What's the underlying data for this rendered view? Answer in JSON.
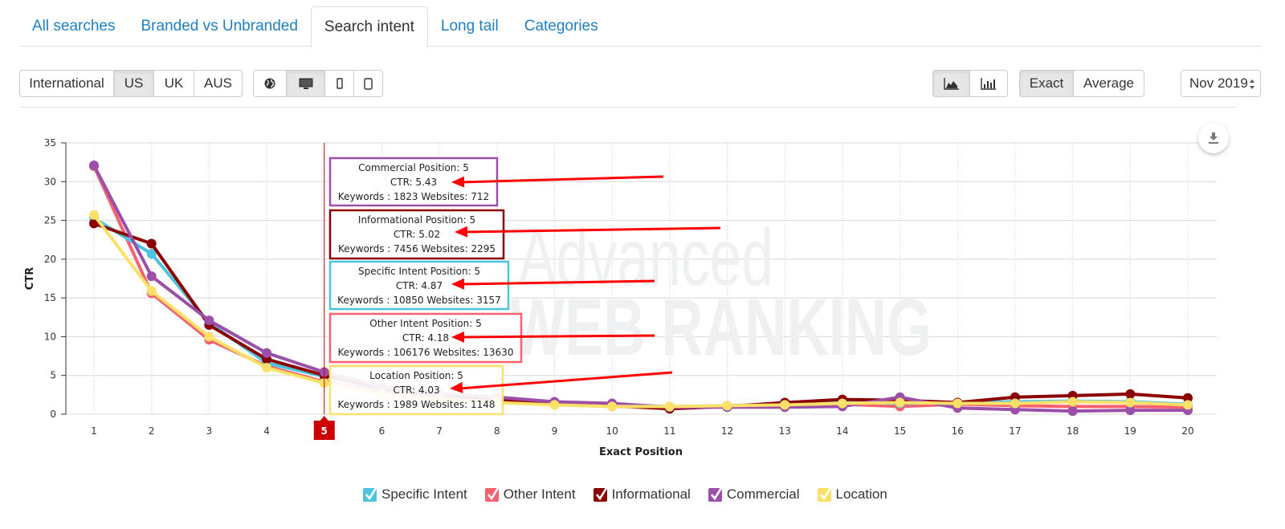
{
  "tabs": [
    {
      "label": "All searches",
      "active": false
    },
    {
      "label": "Branded vs Unbranded",
      "active": false
    },
    {
      "label": "Search intent",
      "active": true
    },
    {
      "label": "Long tail",
      "active": false
    },
    {
      "label": "Categories",
      "active": false
    }
  ],
  "toolbar": {
    "regions": [
      {
        "label": "International",
        "active": false
      },
      {
        "label": "US",
        "active": true
      },
      {
        "label": "UK",
        "active": false
      },
      {
        "label": "AUS",
        "active": false
      }
    ],
    "devices": [
      {
        "icon": "globe-icon",
        "active": false
      },
      {
        "icon": "desktop-icon",
        "active": true
      },
      {
        "icon": "mobile-icon",
        "active": false
      },
      {
        "icon": "tablet-icon",
        "active": false
      }
    ],
    "chart_types": [
      {
        "icon": "area-chart-icon",
        "active": true
      },
      {
        "icon": "bar-chart-icon",
        "active": false
      }
    ],
    "modes": [
      {
        "label": "Exact",
        "active": true
      },
      {
        "label": "Average",
        "active": false
      }
    ],
    "date_select": "Nov 2019"
  },
  "watermark": {
    "line1": "Advanced",
    "line2": "WEB RANKING"
  },
  "chart_data": {
    "type": "line",
    "title": "",
    "xlabel": "Exact Position",
    "ylabel": "CTR",
    "ylim": [
      0,
      35
    ],
    "yticks": [
      0,
      5,
      10,
      15,
      20,
      25,
      30,
      35
    ],
    "x": [
      1,
      2,
      3,
      4,
      5,
      6,
      7,
      8,
      9,
      10,
      11,
      12,
      13,
      14,
      15,
      16,
      17,
      18,
      19,
      20
    ],
    "grid": true,
    "legend_position": "bottom",
    "highlighted_x": 5,
    "series": [
      {
        "name": "Specific Intent",
        "color": "#4ec3e0",
        "values": [
          25.3,
          20.7,
          11.8,
          6.6,
          4.87,
          3.2,
          2.4,
          1.9,
          1.5,
          1.2,
          1.0,
          1.1,
          1.3,
          1.5,
          1.4,
          1.5,
          1.6,
          1.7,
          1.6,
          1.3
        ]
      },
      {
        "name": "Other Intent",
        "color": "#f7606e",
        "values": [
          32.0,
          15.6,
          9.6,
          6.2,
          4.18,
          2.9,
          2.1,
          1.6,
          1.3,
          1.0,
          0.9,
          1.0,
          1.2,
          1.3,
          1.0,
          1.3,
          1.1,
          1.0,
          1.0,
          0.9
        ]
      },
      {
        "name": "Informational",
        "color": "#8b0000",
        "values": [
          24.6,
          22.0,
          11.5,
          7.1,
          5.02,
          3.3,
          2.5,
          1.9,
          1.4,
          1.1,
          0.7,
          1.0,
          1.5,
          1.9,
          1.8,
          1.5,
          2.2,
          2.4,
          2.6,
          2.1
        ]
      },
      {
        "name": "Commercial",
        "color": "#9b4fa8",
        "values": [
          32.1,
          17.8,
          12.1,
          7.9,
          5.43,
          3.6,
          2.7,
          2.2,
          1.6,
          1.4,
          0.9,
          0.9,
          0.9,
          1.0,
          2.2,
          0.8,
          0.6,
          0.4,
          0.5,
          0.5
        ]
      },
      {
        "name": "Location",
        "color": "#fde068",
        "values": [
          25.7,
          15.9,
          10.0,
          6.0,
          4.03,
          2.6,
          1.9,
          1.5,
          1.2,
          1.0,
          1.0,
          1.1,
          1.2,
          1.4,
          1.5,
          1.4,
          1.4,
          1.6,
          1.5,
          1.2
        ]
      }
    ],
    "tooltips": [
      {
        "series": "Commercial",
        "title": "Commercial Position: 5",
        "ctr": "CTR: 5.43",
        "stats": "Keywords : 1823 Websites: 712",
        "border": "#9b4fa8"
      },
      {
        "series": "Informational",
        "title": "Informational Position: 5",
        "ctr": "CTR: 5.02",
        "stats": "Keywords : 7456 Websites: 2295",
        "border": "#8b0000"
      },
      {
        "series": "Specific Intent",
        "title": "Specific Intent Position: 5",
        "ctr": "CTR: 4.87",
        "stats": "Keywords : 10850 Websites: 3157",
        "border": "#4ec3e0"
      },
      {
        "series": "Other Intent",
        "title": "Other Intent Position: 5",
        "ctr": "CTR: 4.18",
        "stats": "Keywords : 106176 Websites: 13630",
        "border": "#f7606e"
      },
      {
        "series": "Location",
        "title": "Location Position: 5",
        "ctr": "CTR: 4.03",
        "stats": "Keywords : 1989 Websites: 1148",
        "border": "#fde068"
      }
    ]
  },
  "legend": [
    {
      "label": "Specific Intent",
      "color": "#4ec3e0",
      "checked": true
    },
    {
      "label": "Other Intent",
      "color": "#f7606e",
      "checked": true
    },
    {
      "label": "Informational",
      "color": "#8b0000",
      "checked": true
    },
    {
      "label": "Commercial",
      "color": "#9b4fa8",
      "checked": true
    },
    {
      "label": "Location",
      "color": "#fde068",
      "checked": true
    }
  ]
}
